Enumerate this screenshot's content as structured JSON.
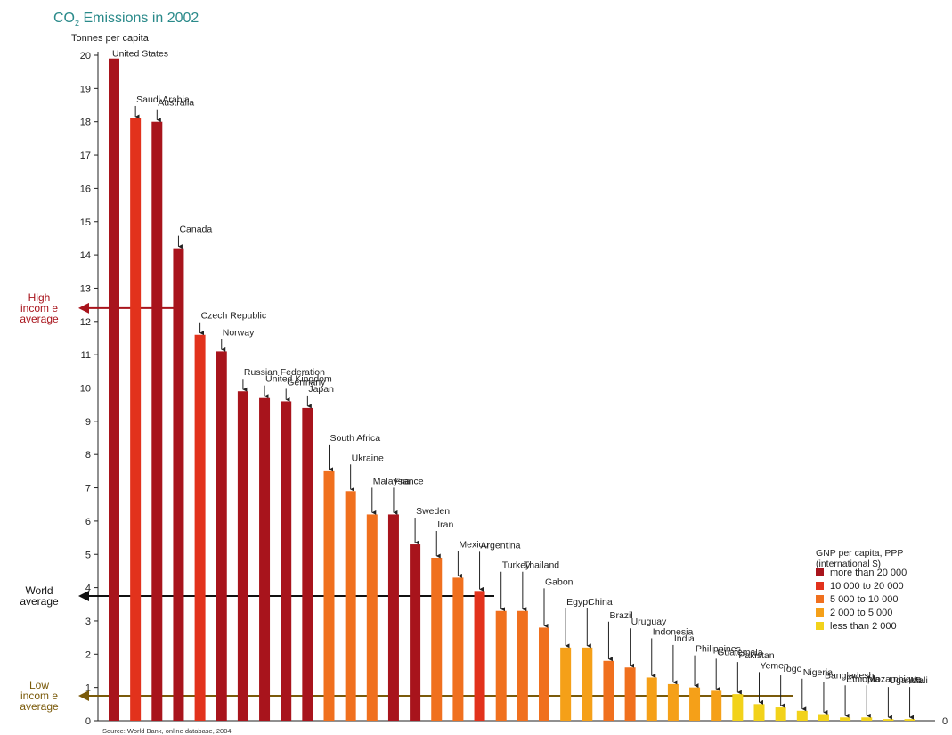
{
  "chart_data": {
    "type": "bar",
    "title": "CO",
    "title_sub": "2",
    "title_rest": " Emissions in 2002",
    "ylabel": "Tonnes per capita",
    "ylim": [
      0,
      20
    ],
    "yticks": [
      0,
      1,
      2,
      3,
      4,
      5,
      6,
      7,
      8,
      9,
      10,
      11,
      12,
      13,
      14,
      15,
      16,
      17,
      18,
      19,
      20
    ],
    "grid": false,
    "x_axis_end_label": "0",
    "colors": {
      "more_than_20000": "#a8141c",
      "10000_to_20000": "#e2321c",
      "5000_to_10000": "#f0701e",
      "2000_to_5000": "#f5a018",
      "less_than_2000": "#f2d21a"
    },
    "categories": [
      "United States",
      "Saudi  Arabia",
      "Australia",
      "Canada",
      "Czech Republic",
      "Norway",
      "Russian Federation",
      "United Kingdom",
      "Germany",
      "Japan",
      "South  Africa",
      "Ukraine",
      "Malaysia",
      "France",
      "Sweden",
      "Iran",
      "Mexico",
      "Argentina",
      "Turkey",
      "Thailand",
      "Gabon",
      "Egypt",
      "China",
      "Brazil",
      "Uruguay",
      "Indonesia",
      "India",
      "Philippines",
      "Guatemala",
      "Pakistan",
      "Yemen",
      "Togo",
      "Nigeria",
      "Bangladesh",
      "Ethiopia",
      "Mozambique",
      "Uganda",
      "Mali"
    ],
    "values": [
      19.9,
      18.1,
      18.0,
      14.2,
      11.6,
      11.1,
      9.9,
      9.7,
      9.6,
      9.4,
      7.5,
      6.9,
      6.2,
      6.2,
      5.3,
      4.9,
      4.3,
      3.9,
      3.3,
      3.3,
      2.8,
      2.2,
      2.2,
      1.8,
      1.6,
      1.3,
      1.1,
      1.0,
      0.9,
      0.8,
      0.5,
      0.4,
      0.3,
      0.2,
      0.1,
      0.1,
      0.05,
      0.05
    ],
    "income_group": [
      "more_than_20000",
      "10000_to_20000",
      "more_than_20000",
      "more_than_20000",
      "10000_to_20000",
      "more_than_20000",
      "more_than_20000",
      "more_than_20000",
      "more_than_20000",
      "more_than_20000",
      "5000_to_10000",
      "5000_to_10000",
      "5000_to_10000",
      "more_than_20000",
      "more_than_20000",
      "5000_to_10000",
      "5000_to_10000",
      "10000_to_20000",
      "5000_to_10000",
      "5000_to_10000",
      "5000_to_10000",
      "2000_to_5000",
      "2000_to_5000",
      "5000_to_10000",
      "5000_to_10000",
      "2000_to_5000",
      "2000_to_5000",
      "2000_to_5000",
      "2000_to_5000",
      "less_than_2000",
      "less_than_2000",
      "less_than_2000",
      "less_than_2000",
      "less_than_2000",
      "less_than_2000",
      "less_than_2000",
      "less_than_2000",
      "less_than_2000"
    ],
    "reference_lines": [
      {
        "label_lines": [
          "High",
          "incom e",
          "average"
        ],
        "value": 12.4,
        "color": "#a8141c"
      },
      {
        "label_lines": [
          "World",
          "average"
        ],
        "value": 3.75,
        "color": "#111111"
      },
      {
        "label_lines": [
          "Low",
          "incom e",
          "average"
        ],
        "value": 0.75,
        "color": "#7a5a0a"
      }
    ],
    "legend": {
      "title_lines": [
        "GNP  per capita, PPP",
        "(international $)"
      ],
      "items": [
        {
          "key": "more_than_20000",
          "label": "more than 20 000"
        },
        {
          "key": "10000_to_20000",
          "label": "10 000 to 20 000"
        },
        {
          "key": "5000_to_10000",
          "label": "5 000 to 10 000"
        },
        {
          "key": "2000_to_5000",
          "label": "2 000 to 5 000"
        },
        {
          "key": "less_than_2000",
          "label": "less than 2 000"
        }
      ]
    },
    "source": "Source:   World Bank, online database, 2004."
  }
}
